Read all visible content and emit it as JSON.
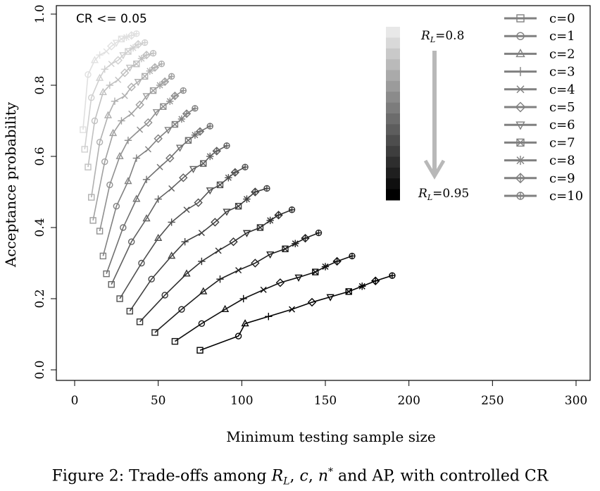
{
  "caption": "Figure 2: Trade-offs among R_L, c, n* and AP, with controlled CR",
  "chart_data": {
    "type": "line",
    "title": "",
    "annotation": "CR <= 0.05",
    "xlabel": "Minimum testing sample size",
    "ylabel": "Acceptance probability",
    "xlim": [
      0,
      300
    ],
    "ylim": [
      0,
      1
    ],
    "xticks": [
      "0",
      "50",
      "100",
      "150",
      "200",
      "250",
      "300"
    ],
    "yticks": [
      "0.0",
      "0.2",
      "0.4",
      "0.6",
      "0.8",
      "1.0"
    ],
    "grid": false,
    "legend_position": "top-right",
    "gradient_legend": {
      "top_label": "R_L=0.8",
      "bottom_label": "R_L=0.95",
      "top_color": "#e6e6e6",
      "bottom_color": "#000000",
      "steps": 16
    },
    "series": [
      {
        "name": "c=0",
        "marker": "square",
        "x": [
          5,
          6,
          8,
          10,
          11,
          15,
          17,
          19,
          22,
          27,
          33,
          39,
          48,
          60,
          75
        ],
        "y": [
          0.675,
          0.62,
          0.57,
          0.485,
          0.42,
          0.39,
          0.32,
          0.27,
          0.24,
          0.2,
          0.165,
          0.135,
          0.105,
          0.08,
          0.055
        ]
      },
      {
        "name": "c=1",
        "marker": "circle",
        "x": [
          8,
          10,
          12,
          15,
          18,
          21,
          25,
          29,
          34,
          40,
          46,
          54,
          64,
          76,
          98
        ],
        "y": [
          0.83,
          0.765,
          0.7,
          0.64,
          0.585,
          0.52,
          0.46,
          0.4,
          0.36,
          0.3,
          0.255,
          0.21,
          0.17,
          0.13,
          0.095
        ]
      },
      {
        "name": "c=2",
        "marker": "triangle",
        "x": [
          12,
          15,
          17,
          20,
          23,
          27,
          32,
          37,
          43,
          50,
          58,
          67,
          77,
          90,
          102
        ],
        "y": [
          0.87,
          0.82,
          0.78,
          0.715,
          0.665,
          0.6,
          0.53,
          0.48,
          0.425,
          0.37,
          0.32,
          0.27,
          0.22,
          0.17,
          0.13
        ]
      },
      {
        "name": "c=3",
        "marker": "plus",
        "x": [
          15,
          18,
          21,
          24,
          28,
          32,
          37,
          43,
          50,
          58,
          66,
          76,
          87,
          101,
          116
        ],
        "y": [
          0.885,
          0.845,
          0.8,
          0.755,
          0.7,
          0.645,
          0.595,
          0.535,
          0.48,
          0.415,
          0.36,
          0.305,
          0.255,
          0.2,
          0.15
        ]
      },
      {
        "name": "c=4",
        "marker": "x",
        "x": [
          19,
          22,
          26,
          30,
          34,
          39,
          44,
          51,
          58,
          67,
          76,
          86,
          98,
          113,
          130
        ],
        "y": [
          0.895,
          0.86,
          0.815,
          0.77,
          0.72,
          0.675,
          0.62,
          0.57,
          0.51,
          0.45,
          0.385,
          0.335,
          0.28,
          0.225,
          0.17
        ]
      },
      {
        "name": "c=5",
        "marker": "diamond",
        "x": [
          22,
          26,
          30,
          34,
          39,
          44,
          50,
          57,
          65,
          74,
          84,
          95,
          108,
          123,
          142
        ],
        "y": [
          0.91,
          0.87,
          0.835,
          0.795,
          0.745,
          0.695,
          0.65,
          0.595,
          0.54,
          0.47,
          0.415,
          0.36,
          0.3,
          0.245,
          0.19
        ]
      },
      {
        "name": "c=6",
        "marker": "triangle-down",
        "x": [
          25,
          29,
          33,
          38,
          43,
          49,
          56,
          63,
          71,
          81,
          91,
          103,
          117,
          134,
          153
        ],
        "y": [
          0.92,
          0.885,
          0.85,
          0.81,
          0.77,
          0.725,
          0.675,
          0.625,
          0.565,
          0.505,
          0.445,
          0.385,
          0.325,
          0.26,
          0.205
        ]
      },
      {
        "name": "c=7",
        "marker": "square-x",
        "x": [
          28,
          32,
          37,
          42,
          47,
          53,
          60,
          68,
          77,
          87,
          98,
          111,
          126,
          144,
          164
        ],
        "y": [
          0.93,
          0.895,
          0.86,
          0.825,
          0.785,
          0.74,
          0.69,
          0.645,
          0.58,
          0.52,
          0.46,
          0.4,
          0.34,
          0.275,
          0.22
        ]
      },
      {
        "name": "c=8",
        "marker": "asterisk",
        "x": [
          31,
          35,
          40,
          45,
          51,
          57,
          64,
          72,
          81,
          92,
          103,
          117,
          132,
          150,
          172
        ],
        "y": [
          0.935,
          0.905,
          0.875,
          0.84,
          0.8,
          0.755,
          0.705,
          0.66,
          0.6,
          0.54,
          0.48,
          0.42,
          0.355,
          0.29,
          0.235
        ]
      },
      {
        "name": "c=9",
        "marker": "diamond-plus",
        "x": [
          34,
          38,
          43,
          48,
          54,
          60,
          67,
          75,
          85,
          96,
          108,
          122,
          138,
          157,
          180
        ],
        "y": [
          0.94,
          0.915,
          0.885,
          0.85,
          0.81,
          0.77,
          0.72,
          0.67,
          0.615,
          0.555,
          0.5,
          0.435,
          0.37,
          0.305,
          0.25
        ]
      },
      {
        "name": "c=10",
        "marker": "circle-plus",
        "x": [
          37,
          42,
          47,
          52,
          58,
          65,
          72,
          81,
          91,
          102,
          115,
          130,
          146,
          166,
          190
        ],
        "y": [
          0.945,
          0.92,
          0.89,
          0.86,
          0.825,
          0.785,
          0.735,
          0.685,
          0.63,
          0.57,
          0.51,
          0.45,
          0.385,
          0.32,
          0.265
        ]
      }
    ],
    "curves": [
      {
        "level": 0,
        "c": [
          0,
          1,
          2,
          3,
          4,
          5,
          6,
          7,
          8,
          9,
          10
        ],
        "x": [
          5,
          8,
          12,
          15,
          19,
          22,
          25,
          28,
          31,
          34,
          37
        ],
        "y": [
          0.675,
          0.83,
          0.87,
          0.885,
          0.895,
          0.91,
          0.92,
          0.93,
          0.935,
          0.94,
          0.945
        ]
      },
      {
        "level": 1,
        "c": [
          0,
          1,
          2,
          3,
          4,
          5,
          6,
          7,
          8,
          9,
          10
        ],
        "x": [
          6,
          10,
          15,
          18,
          22,
          26,
          29,
          32,
          35,
          38,
          42
        ],
        "y": [
          0.62,
          0.765,
          0.82,
          0.845,
          0.86,
          0.87,
          0.885,
          0.895,
          0.905,
          0.915,
          0.92
        ]
      },
      {
        "level": 2,
        "c": [
          0,
          1,
          2,
          3,
          4,
          5,
          6,
          7,
          8,
          9,
          10
        ],
        "x": [
          8,
          12,
          17,
          21,
          26,
          30,
          33,
          37,
          40,
          43,
          47
        ],
        "y": [
          0.57,
          0.7,
          0.78,
          0.8,
          0.815,
          0.835,
          0.85,
          0.86,
          0.875,
          0.885,
          0.89
        ]
      },
      {
        "level": 3,
        "c": [
          0,
          1,
          2,
          3,
          4,
          5,
          6,
          7,
          8,
          9,
          10
        ],
        "x": [
          10,
          15,
          20,
          24,
          30,
          34,
          38,
          42,
          45,
          48,
          52
        ],
        "y": [
          0.485,
          0.64,
          0.715,
          0.755,
          0.77,
          0.795,
          0.81,
          0.825,
          0.84,
          0.85,
          0.86
        ]
      },
      {
        "level": 4,
        "c": [
          0,
          1,
          2,
          3,
          4,
          5,
          6,
          7,
          8,
          9,
          10
        ],
        "x": [
          11,
          18,
          23,
          28,
          34,
          39,
          43,
          47,
          51,
          54,
          58
        ],
        "y": [
          0.42,
          0.585,
          0.665,
          0.7,
          0.72,
          0.745,
          0.77,
          0.785,
          0.8,
          0.81,
          0.825
        ]
      },
      {
        "level": 5,
        "c": [
          0,
          1,
          2,
          3,
          4,
          5,
          6,
          7,
          8,
          9,
          10
        ],
        "x": [
          15,
          21,
          27,
          32,
          39,
          44,
          49,
          53,
          57,
          60,
          65
        ],
        "y": [
          0.39,
          0.52,
          0.6,
          0.645,
          0.675,
          0.695,
          0.725,
          0.74,
          0.755,
          0.77,
          0.785
        ]
      },
      {
        "level": 6,
        "c": [
          0,
          1,
          2,
          3,
          4,
          5,
          6,
          7,
          8,
          9,
          10
        ],
        "x": [
          17,
          25,
          32,
          37,
          44,
          50,
          56,
          60,
          64,
          67,
          72
        ],
        "y": [
          0.32,
          0.46,
          0.53,
          0.595,
          0.62,
          0.65,
          0.675,
          0.69,
          0.705,
          0.72,
          0.735
        ]
      },
      {
        "level": 7,
        "c": [
          0,
          1,
          2,
          3,
          4,
          5,
          6,
          7,
          8,
          9,
          10
        ],
        "x": [
          19,
          29,
          37,
          43,
          51,
          57,
          63,
          68,
          72,
          75,
          81
        ],
        "y": [
          0.27,
          0.4,
          0.48,
          0.535,
          0.57,
          0.595,
          0.625,
          0.645,
          0.66,
          0.67,
          0.685
        ]
      },
      {
        "level": 8,
        "c": [
          0,
          1,
          2,
          3,
          4,
          5,
          6,
          7,
          8,
          9,
          10
        ],
        "x": [
          22,
          34,
          43,
          50,
          58,
          65,
          71,
          77,
          81,
          85,
          91
        ],
        "y": [
          0.24,
          0.36,
          0.425,
          0.48,
          0.51,
          0.54,
          0.565,
          0.58,
          0.6,
          0.615,
          0.63
        ]
      },
      {
        "level": 9,
        "c": [
          0,
          1,
          2,
          3,
          4,
          5,
          6,
          7,
          8,
          9,
          10
        ],
        "x": [
          27,
          40,
          50,
          58,
          67,
          74,
          81,
          87,
          92,
          96,
          102
        ],
        "y": [
          0.2,
          0.3,
          0.37,
          0.415,
          0.45,
          0.47,
          0.505,
          0.52,
          0.54,
          0.555,
          0.57
        ]
      },
      {
        "level": 10,
        "c": [
          0,
          1,
          2,
          3,
          4,
          5,
          6,
          7,
          8,
          9,
          10
        ],
        "x": [
          33,
          46,
          58,
          66,
          76,
          84,
          91,
          98,
          103,
          108,
          115
        ],
        "y": [
          0.165,
          0.255,
          0.32,
          0.36,
          0.385,
          0.415,
          0.445,
          0.46,
          0.48,
          0.5,
          0.51
        ]
      },
      {
        "level": 11,
        "c": [
          0,
          1,
          2,
          3,
          4,
          5,
          6,
          7,
          8,
          9,
          10
        ],
        "x": [
          39,
          54,
          67,
          76,
          86,
          95,
          103,
          111,
          117,
          122,
          130
        ],
        "y": [
          0.135,
          0.21,
          0.27,
          0.305,
          0.335,
          0.36,
          0.385,
          0.4,
          0.42,
          0.435,
          0.45
        ]
      },
      {
        "level": 12,
        "c": [
          0,
          1,
          2,
          3,
          4,
          5,
          6,
          7,
          8,
          9,
          10
        ],
        "x": [
          48,
          64,
          77,
          87,
          98,
          108,
          117,
          126,
          132,
          138,
          146
        ],
        "y": [
          0.105,
          0.17,
          0.22,
          0.255,
          0.28,
          0.3,
          0.325,
          0.34,
          0.355,
          0.37,
          0.385
        ]
      },
      {
        "level": 13,
        "c": [
          0,
          1,
          2,
          3,
          4,
          5,
          6,
          7,
          8,
          9,
          10
        ],
        "x": [
          60,
          76,
          90,
          101,
          113,
          123,
          134,
          144,
          150,
          157,
          166
        ],
        "y": [
          0.08,
          0.13,
          0.17,
          0.2,
          0.225,
          0.245,
          0.26,
          0.275,
          0.29,
          0.305,
          0.32
        ]
      },
      {
        "level": 14,
        "c": [
          0,
          1,
          2,
          3,
          4,
          5,
          6,
          7,
          8,
          9,
          10
        ],
        "x": [
          75,
          98,
          102,
          116,
          130,
          142,
          153,
          164,
          172,
          180,
          190
        ],
        "y": [
          0.055,
          0.095,
          0.13,
          0.15,
          0.17,
          0.19,
          0.205,
          0.22,
          0.235,
          0.25,
          0.265
        ]
      }
    ]
  }
}
